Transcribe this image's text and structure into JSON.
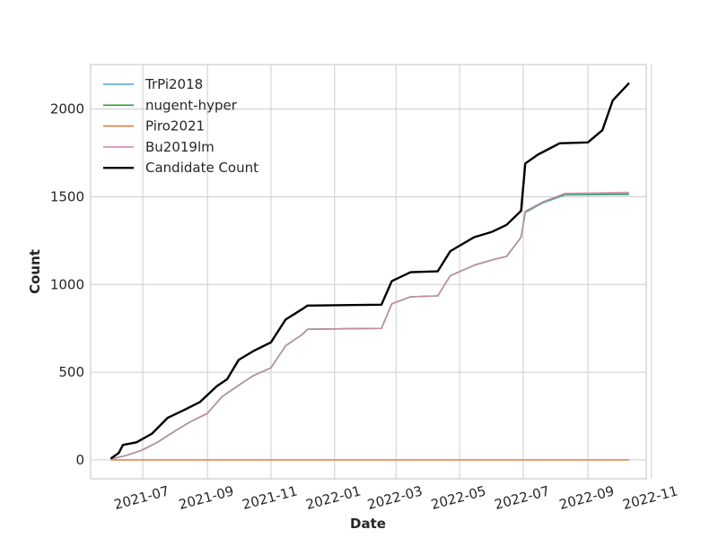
{
  "chart_data": {
    "type": "line",
    "xlabel": "Date",
    "ylabel": "Count",
    "x_range": [
      "2021-05-12",
      "2022-10-27"
    ],
    "ylim": [
      -108,
      2254
    ],
    "x_ticks": [
      "2021-07",
      "2021-09",
      "2021-11",
      "2022-01",
      "2022-03",
      "2022-05",
      "2022-07",
      "2022-09",
      "2022-11"
    ],
    "y_ticks": [
      0,
      500,
      1000,
      1500,
      2000
    ],
    "grid": true,
    "legend_position": "top-left",
    "series": [
      {
        "name": "TrPi2018",
        "color": "#4f9fcd",
        "points": [
          [
            "2021-06-01",
            5
          ],
          [
            "2021-06-15",
            25
          ],
          [
            "2021-06-30",
            55
          ],
          [
            "2021-07-15",
            100
          ],
          [
            "2021-08-01",
            165
          ],
          [
            "2021-08-15",
            215
          ],
          [
            "2021-09-01",
            265
          ],
          [
            "2021-09-15",
            360
          ],
          [
            "2021-10-01",
            425
          ],
          [
            "2021-10-15",
            480
          ],
          [
            "2021-11-01",
            525
          ],
          [
            "2021-11-15",
            650
          ],
          [
            "2021-12-01",
            715
          ],
          [
            "2021-12-06",
            745
          ],
          [
            "2022-02-15",
            750
          ],
          [
            "2022-02-25",
            890
          ],
          [
            "2022-03-15",
            930
          ],
          [
            "2022-04-10",
            935
          ],
          [
            "2022-04-22",
            1050
          ],
          [
            "2022-05-15",
            1110
          ],
          [
            "2022-06-01",
            1140
          ],
          [
            "2022-06-15",
            1160
          ],
          [
            "2022-06-29",
            1270
          ],
          [
            "2022-07-03",
            1410
          ],
          [
            "2022-07-20",
            1465
          ],
          [
            "2022-08-10",
            1510
          ],
          [
            "2022-10-10",
            1512
          ]
        ]
      },
      {
        "name": "nugent-hyper",
        "color": "#2ca02c",
        "points": [
          [
            "2021-06-01",
            5
          ],
          [
            "2021-06-15",
            25
          ],
          [
            "2021-06-30",
            55
          ],
          [
            "2021-07-15",
            100
          ],
          [
            "2021-08-01",
            165
          ],
          [
            "2021-08-15",
            215
          ],
          [
            "2021-09-01",
            265
          ],
          [
            "2021-09-15",
            360
          ],
          [
            "2021-10-01",
            425
          ],
          [
            "2021-10-15",
            480
          ],
          [
            "2021-11-01",
            525
          ],
          [
            "2021-11-15",
            650
          ],
          [
            "2021-12-01",
            715
          ],
          [
            "2021-12-06",
            745
          ],
          [
            "2022-02-15",
            750
          ],
          [
            "2022-02-25",
            890
          ],
          [
            "2022-03-15",
            930
          ],
          [
            "2022-04-10",
            935
          ],
          [
            "2022-04-22",
            1050
          ],
          [
            "2022-05-15",
            1110
          ],
          [
            "2022-06-01",
            1140
          ],
          [
            "2022-06-15",
            1160
          ],
          [
            "2022-06-29",
            1270
          ],
          [
            "2022-07-03",
            1415
          ],
          [
            "2022-07-20",
            1470
          ],
          [
            "2022-08-10",
            1515
          ],
          [
            "2022-10-10",
            1518
          ]
        ]
      },
      {
        "name": "Piro2021",
        "color": "#e07b39",
        "points": [
          [
            "2021-06-01",
            0
          ],
          [
            "2022-10-10",
            0
          ]
        ]
      },
      {
        "name": "Bu2019lm",
        "color": "#d98cb3",
        "points": [
          [
            "2021-06-01",
            5
          ],
          [
            "2021-06-15",
            25
          ],
          [
            "2021-06-30",
            55
          ],
          [
            "2021-07-15",
            100
          ],
          [
            "2021-08-01",
            165
          ],
          [
            "2021-08-15",
            215
          ],
          [
            "2021-09-01",
            265
          ],
          [
            "2021-09-15",
            360
          ],
          [
            "2021-10-01",
            425
          ],
          [
            "2021-10-15",
            480
          ],
          [
            "2021-11-01",
            525
          ],
          [
            "2021-11-15",
            650
          ],
          [
            "2021-12-01",
            715
          ],
          [
            "2021-12-06",
            745
          ],
          [
            "2022-02-15",
            750
          ],
          [
            "2022-02-25",
            890
          ],
          [
            "2022-03-15",
            930
          ],
          [
            "2022-04-10",
            935
          ],
          [
            "2022-04-22",
            1050
          ],
          [
            "2022-05-15",
            1110
          ],
          [
            "2022-06-01",
            1140
          ],
          [
            "2022-06-15",
            1160
          ],
          [
            "2022-06-29",
            1270
          ],
          [
            "2022-07-03",
            1418
          ],
          [
            "2022-07-20",
            1472
          ],
          [
            "2022-08-10",
            1520
          ],
          [
            "2022-10-10",
            1525
          ]
        ]
      },
      {
        "name": "Candidate Count",
        "color": "#000000",
        "points": [
          [
            "2021-06-01",
            10
          ],
          [
            "2021-06-08",
            40
          ],
          [
            "2021-06-12",
            85
          ],
          [
            "2021-06-25",
            100
          ],
          [
            "2021-07-10",
            150
          ],
          [
            "2021-07-25",
            240
          ],
          [
            "2021-08-10",
            285
          ],
          [
            "2021-08-25",
            330
          ],
          [
            "2021-09-10",
            420
          ],
          [
            "2021-09-20",
            460
          ],
          [
            "2021-10-01",
            570
          ],
          [
            "2021-10-15",
            620
          ],
          [
            "2021-11-01",
            670
          ],
          [
            "2021-11-15",
            800
          ],
          [
            "2021-12-01",
            860
          ],
          [
            "2021-12-06",
            880
          ],
          [
            "2022-02-15",
            885
          ],
          [
            "2022-02-25",
            1020
          ],
          [
            "2022-03-15",
            1070
          ],
          [
            "2022-04-10",
            1075
          ],
          [
            "2022-04-22",
            1190
          ],
          [
            "2022-05-15",
            1270
          ],
          [
            "2022-06-01",
            1300
          ],
          [
            "2022-06-15",
            1340
          ],
          [
            "2022-06-29",
            1420
          ],
          [
            "2022-07-03",
            1690
          ],
          [
            "2022-07-15",
            1740
          ],
          [
            "2022-08-05",
            1805
          ],
          [
            "2022-09-01",
            1810
          ],
          [
            "2022-09-15",
            1880
          ],
          [
            "2022-09-25",
            2050
          ],
          [
            "2022-10-10",
            2145
          ]
        ]
      }
    ]
  }
}
